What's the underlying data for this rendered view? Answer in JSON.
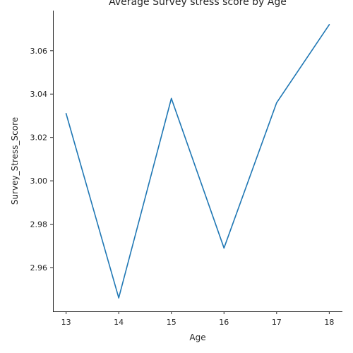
{
  "chart_data": {
    "type": "line",
    "title": "Average Survey stress score by Age",
    "xlabel": "Age",
    "ylabel": "Survey_Stress_Score",
    "x": [
      13,
      14,
      15,
      16,
      17,
      18
    ],
    "series": [
      {
        "values": [
          3.031,
          2.946,
          3.038,
          2.969,
          3.036,
          3.072
        ],
        "color": "#1f77b4"
      }
    ],
    "xticks": [
      "13",
      "14",
      "15",
      "16",
      "17",
      "18"
    ],
    "yticks": [
      "2.96",
      "2.98",
      "3.00",
      "3.02",
      "3.04",
      "3.06"
    ],
    "xlim": [
      12.75,
      18.25
    ],
    "ylim": [
      2.9398,
      3.0785
    ],
    "grid": false,
    "spines": [
      "left",
      "bottom"
    ]
  }
}
